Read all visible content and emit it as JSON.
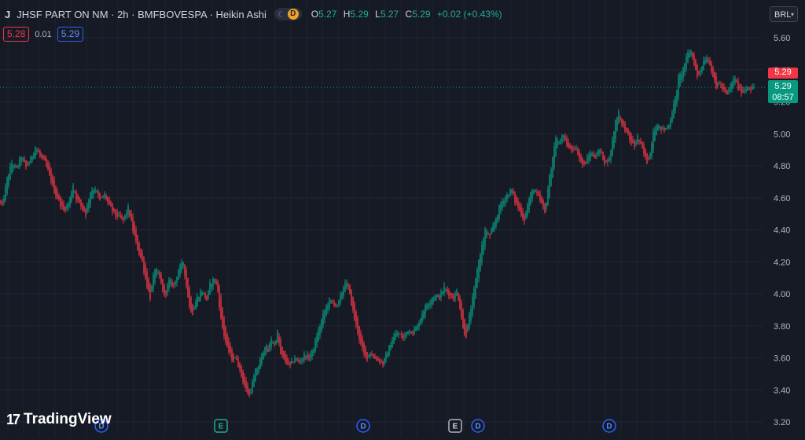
{
  "header": {
    "symbol_logo": "J",
    "title": "JHSF PART ON NM · 2h · BMFBOVESPA · Heikin Ashi",
    "session_badge": "D",
    "ohlc": {
      "o_label": "O",
      "o": "5.27",
      "h_label": "H",
      "h": "5.29",
      "l_label": "L",
      "l": "5.27",
      "c_label": "C",
      "c": "5.29",
      "change": "+0.02 (+0.43%)"
    }
  },
  "quote": {
    "bid": "5.28",
    "spread": "0.01",
    "ask": "5.29"
  },
  "currency": {
    "label": "BRL"
  },
  "price_tags": {
    "last_red": "5.29",
    "last_green": "5.29",
    "countdown": "08:57"
  },
  "brand": {
    "name": "TradingView",
    "logo": "17"
  },
  "colors": {
    "background": "#161a25",
    "up": "#089981",
    "down": "#f23645",
    "grid": "#232733",
    "axis_text": "#b2b5be"
  },
  "chart_data": {
    "type": "candlestick",
    "ylim": [
      3.2,
      5.6
    ],
    "y_ticks": [
      "5.60",
      "5.40",
      "5.20",
      "5.00",
      "4.80",
      "4.60",
      "4.40",
      "4.20",
      "4.00",
      "3.80",
      "3.60",
      "3.40",
      "3.20"
    ],
    "last_price": 5.29,
    "keypoints": [
      [
        0,
        4.58
      ],
      [
        4,
        4.55
      ],
      [
        10,
        4.72
      ],
      [
        16,
        4.82
      ],
      [
        22,
        4.78
      ],
      [
        28,
        4.86
      ],
      [
        34,
        4.79
      ],
      [
        40,
        4.84
      ],
      [
        46,
        4.92
      ],
      [
        52,
        4.86
      ],
      [
        58,
        4.82
      ],
      [
        64,
        4.74
      ],
      [
        70,
        4.64
      ],
      [
        76,
        4.58
      ],
      [
        82,
        4.52
      ],
      [
        88,
        4.56
      ],
      [
        94,
        4.68
      ],
      [
        98,
        4.6
      ],
      [
        104,
        4.55
      ],
      [
        110,
        4.5
      ],
      [
        116,
        4.64
      ],
      [
        122,
        4.66
      ],
      [
        128,
        4.58
      ],
      [
        134,
        4.62
      ],
      [
        140,
        4.55
      ],
      [
        146,
        4.5
      ],
      [
        152,
        4.48
      ],
      [
        158,
        4.46
      ],
      [
        164,
        4.54
      ],
      [
        170,
        4.4
      ],
      [
        176,
        4.28
      ],
      [
        182,
        4.2
      ],
      [
        188,
        4.05
      ],
      [
        192,
        3.98
      ],
      [
        198,
        4.16
      ],
      [
        204,
        4.1
      ],
      [
        210,
        3.98
      ],
      [
        216,
        4.08
      ],
      [
        222,
        4.05
      ],
      [
        228,
        4.15
      ],
      [
        234,
        4.2
      ],
      [
        238,
        4.05
      ],
      [
        242,
        3.92
      ],
      [
        246,
        3.88
      ],
      [
        252,
        3.98
      ],
      [
        258,
        4.02
      ],
      [
        264,
        3.96
      ],
      [
        268,
        4.06
      ],
      [
        274,
        4.1
      ],
      [
        278,
        4.02
      ],
      [
        282,
        3.84
      ],
      [
        286,
        3.74
      ],
      [
        290,
        3.66
      ],
      [
        294,
        3.62
      ],
      [
        298,
        3.58
      ],
      [
        302,
        3.6
      ],
      [
        306,
        3.52
      ],
      [
        310,
        3.46
      ],
      [
        314,
        3.4
      ],
      [
        318,
        3.36
      ],
      [
        322,
        3.44
      ],
      [
        326,
        3.52
      ],
      [
        330,
        3.55
      ],
      [
        334,
        3.62
      ],
      [
        338,
        3.68
      ],
      [
        342,
        3.64
      ],
      [
        346,
        3.72
      ],
      [
        350,
        3.68
      ],
      [
        354,
        3.76
      ],
      [
        358,
        3.62
      ],
      [
        364,
        3.58
      ],
      [
        370,
        3.55
      ],
      [
        376,
        3.6
      ],
      [
        382,
        3.57
      ],
      [
        388,
        3.62
      ],
      [
        394,
        3.6
      ],
      [
        400,
        3.66
      ],
      [
        404,
        3.74
      ],
      [
        408,
        3.8
      ],
      [
        414,
        3.9
      ],
      [
        420,
        3.96
      ],
      [
        426,
        3.94
      ],
      [
        430,
        3.92
      ],
      [
        434,
        3.98
      ],
      [
        440,
        4.08
      ],
      [
        444,
        4.04
      ],
      [
        448,
        3.94
      ],
      [
        452,
        3.84
      ],
      [
        456,
        3.76
      ],
      [
        460,
        3.68
      ],
      [
        464,
        3.62
      ],
      [
        468,
        3.6
      ],
      [
        472,
        3.64
      ],
      [
        476,
        3.6
      ],
      [
        482,
        3.59
      ],
      [
        488,
        3.56
      ],
      [
        494,
        3.64
      ],
      [
        500,
        3.72
      ],
      [
        506,
        3.76
      ],
      [
        510,
        3.74
      ],
      [
        514,
        3.72
      ],
      [
        520,
        3.78
      ],
      [
        526,
        3.76
      ],
      [
        532,
        3.8
      ],
      [
        538,
        3.88
      ],
      [
        542,
        3.92
      ],
      [
        548,
        3.96
      ],
      [
        554,
        3.99
      ],
      [
        560,
        3.98
      ],
      [
        566,
        4.04
      ],
      [
        572,
        4.0
      ],
      [
        578,
        3.97
      ],
      [
        582,
        4.02
      ],
      [
        586,
        3.92
      ],
      [
        590,
        3.78
      ],
      [
        594,
        3.74
      ],
      [
        598,
        3.86
      ],
      [
        604,
        4.02
      ],
      [
        608,
        4.16
      ],
      [
        614,
        4.3
      ],
      [
        618,
        4.4
      ],
      [
        624,
        4.36
      ],
      [
        630,
        4.44
      ],
      [
        636,
        4.54
      ],
      [
        640,
        4.58
      ],
      [
        646,
        4.62
      ],
      [
        652,
        4.65
      ],
      [
        656,
        4.58
      ],
      [
        662,
        4.52
      ],
      [
        668,
        4.46
      ],
      [
        672,
        4.55
      ],
      [
        678,
        4.66
      ],
      [
        684,
        4.62
      ],
      [
        690,
        4.56
      ],
      [
        694,
        4.5
      ],
      [
        698,
        4.66
      ],
      [
        704,
        4.86
      ],
      [
        708,
        4.98
      ],
      [
        712,
        4.93
      ],
      [
        716,
        5.0
      ],
      [
        720,
        4.95
      ],
      [
        726,
        4.9
      ],
      [
        732,
        4.92
      ],
      [
        736,
        4.88
      ],
      [
        740,
        4.82
      ],
      [
        744,
        4.8
      ],
      [
        748,
        4.84
      ],
      [
        752,
        4.88
      ],
      [
        758,
        4.86
      ],
      [
        764,
        4.9
      ],
      [
        770,
        4.82
      ],
      [
        776,
        4.84
      ],
      [
        780,
        4.96
      ],
      [
        784,
        5.08
      ],
      [
        788,
        5.14
      ],
      [
        792,
        5.06
      ],
      [
        798,
        5.01
      ],
      [
        802,
        4.96
      ],
      [
        808,
        4.92
      ],
      [
        812,
        4.98
      ],
      [
        818,
        4.9
      ],
      [
        824,
        4.82
      ],
      [
        828,
        4.88
      ],
      [
        832,
        5.02
      ],
      [
        836,
        5.06
      ],
      [
        840,
        5.04
      ],
      [
        846,
        5.02
      ],
      [
        852,
        5.06
      ],
      [
        856,
        5.14
      ],
      [
        860,
        5.22
      ],
      [
        864,
        5.35
      ],
      [
        868,
        5.38
      ],
      [
        872,
        5.44
      ],
      [
        876,
        5.5
      ],
      [
        880,
        5.52
      ],
      [
        884,
        5.44
      ],
      [
        888,
        5.35
      ],
      [
        892,
        5.4
      ],
      [
        896,
        5.46
      ],
      [
        900,
        5.48
      ],
      [
        904,
        5.44
      ],
      [
        908,
        5.36
      ],
      [
        912,
        5.28
      ],
      [
        916,
        5.32
      ],
      [
        920,
        5.28
      ],
      [
        926,
        5.24
      ],
      [
        932,
        5.32
      ],
      [
        936,
        5.35
      ],
      [
        940,
        5.28
      ],
      [
        946,
        5.26
      ],
      [
        952,
        5.3
      ],
      [
        956,
        5.28
      ],
      [
        960,
        5.29
      ]
    ],
    "events": [
      {
        "label": "D",
        "type": "dividend",
        "at": 129
      },
      {
        "label": "E",
        "type": "earnings",
        "at": 281
      },
      {
        "label": "D",
        "type": "dividend",
        "at": 462
      },
      {
        "label": "E",
        "type": "earnings",
        "at": 579
      },
      {
        "label": "D",
        "type": "dividend",
        "at": 608
      },
      {
        "label": "D",
        "type": "dividend",
        "at": 775
      }
    ]
  }
}
